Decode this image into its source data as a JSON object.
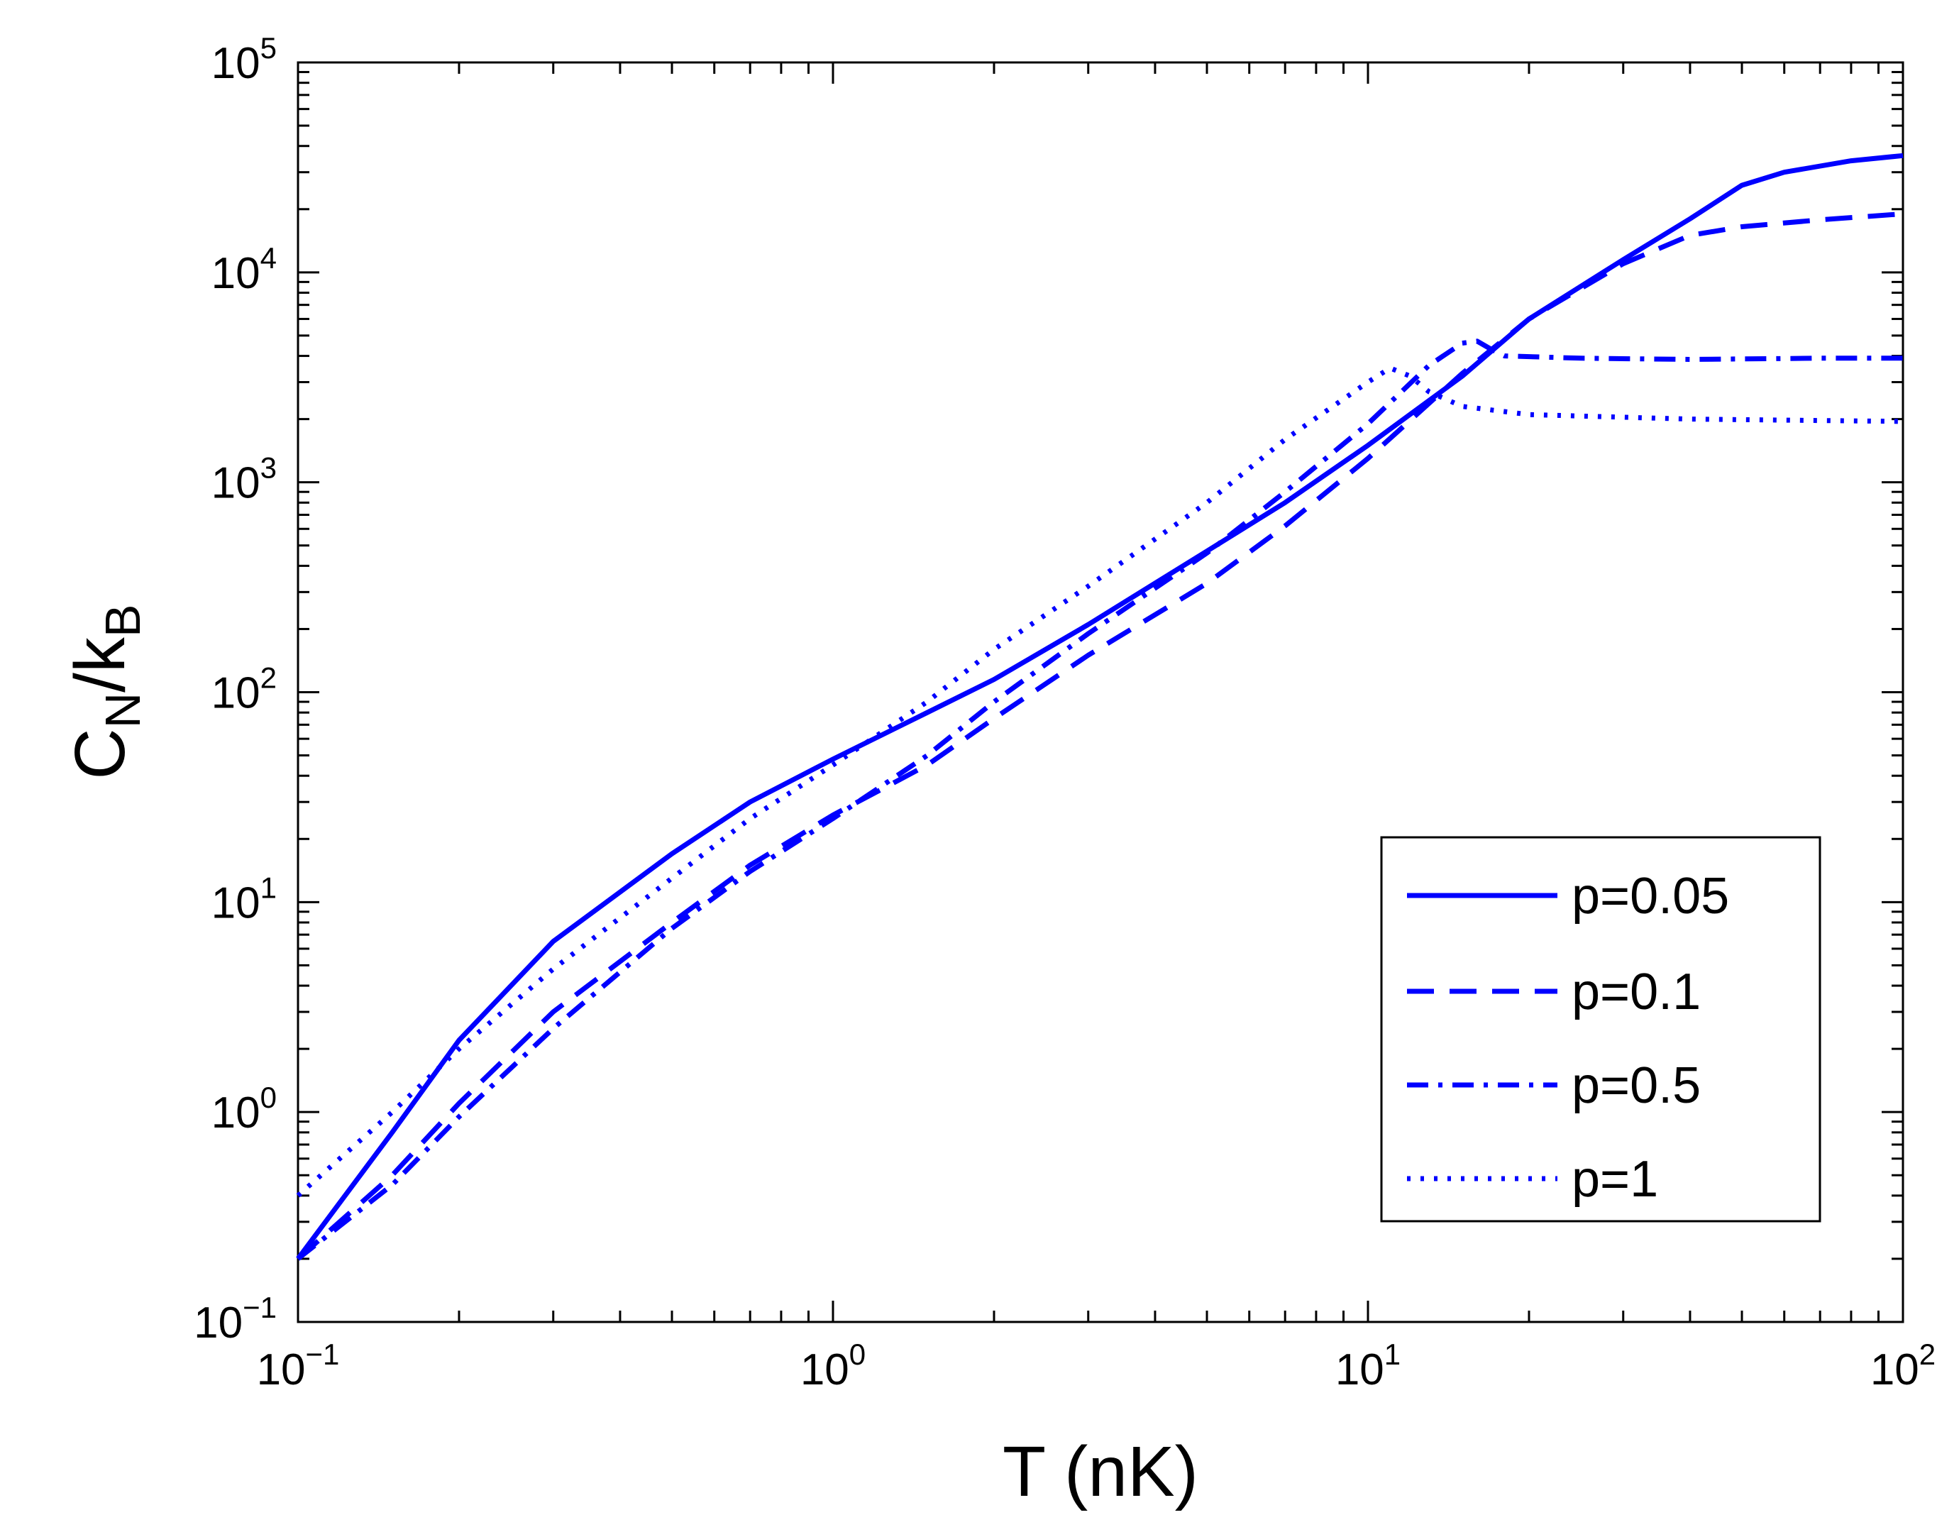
{
  "chart_data": {
    "type": "line",
    "title": "",
    "xlabel": "T (nK)",
    "ylabel": {
      "main1": "C",
      "sub1": "N",
      "main2": "/k",
      "sub2": "B"
    },
    "xscale": "log",
    "yscale": "log",
    "xlim": [
      0.1,
      100
    ],
    "ylim": [
      0.1,
      100000
    ],
    "grid": false,
    "legend_position": "bottom-right",
    "line_color": "#0000ff",
    "x_ticks": [
      {
        "value": 0.1,
        "base": "10",
        "exp": "−1"
      },
      {
        "value": 1,
        "base": "10",
        "exp": "0"
      },
      {
        "value": 10,
        "base": "10",
        "exp": "1"
      },
      {
        "value": 100,
        "base": "10",
        "exp": "2"
      }
    ],
    "y_ticks": [
      {
        "value": 0.1,
        "base": "10",
        "exp": "−1"
      },
      {
        "value": 1,
        "base": "10",
        "exp": "0"
      },
      {
        "value": 10,
        "base": "10",
        "exp": "1"
      },
      {
        "value": 100,
        "base": "10",
        "exp": "2"
      },
      {
        "value": 1000,
        "base": "10",
        "exp": "3"
      },
      {
        "value": 10000,
        "base": "10",
        "exp": "4"
      },
      {
        "value": 100000,
        "base": "10",
        "exp": "5"
      }
    ],
    "series": [
      {
        "name": "p=0.05",
        "style": "solid",
        "points": [
          [
            0.1,
            0.2
          ],
          [
            0.15,
            0.8
          ],
          [
            0.2,
            2.2
          ],
          [
            0.3,
            6.5
          ],
          [
            0.5,
            17
          ],
          [
            0.7,
            30
          ],
          [
            1,
            48
          ],
          [
            1.5,
            80
          ],
          [
            2,
            115
          ],
          [
            3,
            210
          ],
          [
            5,
            470
          ],
          [
            7,
            800
          ],
          [
            10,
            1500
          ],
          [
            15,
            3200
          ],
          [
            20,
            6000
          ],
          [
            30,
            11500
          ],
          [
            40,
            18000
          ],
          [
            50,
            26000
          ],
          [
            60,
            30000
          ],
          [
            80,
            34000
          ],
          [
            100,
            36000
          ]
        ]
      },
      {
        "name": "p=0.1",
        "style": "dashed",
        "points": [
          [
            0.1,
            0.2
          ],
          [
            0.15,
            0.5
          ],
          [
            0.2,
            1.1
          ],
          [
            0.3,
            3
          ],
          [
            0.5,
            8
          ],
          [
            0.7,
            15
          ],
          [
            1,
            26
          ],
          [
            1.5,
            45
          ],
          [
            2,
            75
          ],
          [
            3,
            150
          ],
          [
            5,
            330
          ],
          [
            7,
            620
          ],
          [
            10,
            1300
          ],
          [
            15,
            3300
          ],
          [
            20,
            6000
          ],
          [
            30,
            11000
          ],
          [
            40,
            15000
          ],
          [
            50,
            16500
          ],
          [
            70,
            17800
          ],
          [
            100,
            19000
          ]
        ]
      },
      {
        "name": "p=0.5",
        "style": "dashdot",
        "points": [
          [
            0.1,
            0.2
          ],
          [
            0.15,
            0.45
          ],
          [
            0.2,
            0.95
          ],
          [
            0.3,
            2.5
          ],
          [
            0.5,
            7.5
          ],
          [
            0.7,
            14
          ],
          [
            1,
            25
          ],
          [
            1.5,
            50
          ],
          [
            2,
            90
          ],
          [
            3,
            190
          ],
          [
            5,
            460
          ],
          [
            7,
            900
          ],
          [
            10,
            1900
          ],
          [
            13,
            3600
          ],
          [
            15,
            4600
          ],
          [
            16,
            4700
          ],
          [
            17,
            4300
          ],
          [
            18,
            4000
          ],
          [
            25,
            3900
          ],
          [
            40,
            3850
          ],
          [
            70,
            3900
          ],
          [
            100,
            3900
          ]
        ]
      },
      {
        "name": "p=1",
        "style": "dotted",
        "points": [
          [
            0.1,
            0.4
          ],
          [
            0.15,
            1
          ],
          [
            0.2,
            2
          ],
          [
            0.3,
            4.8
          ],
          [
            0.5,
            13
          ],
          [
            0.7,
            25
          ],
          [
            1,
            45
          ],
          [
            1.5,
            90
          ],
          [
            2,
            160
          ],
          [
            3,
            320
          ],
          [
            5,
            800
          ],
          [
            7,
            1600
          ],
          [
            10,
            3000
          ],
          [
            11,
            3500
          ],
          [
            12,
            3200
          ],
          [
            13,
            2700
          ],
          [
            15,
            2300
          ],
          [
            20,
            2100
          ],
          [
            40,
            2000
          ],
          [
            100,
            1950
          ]
        ]
      }
    ]
  }
}
